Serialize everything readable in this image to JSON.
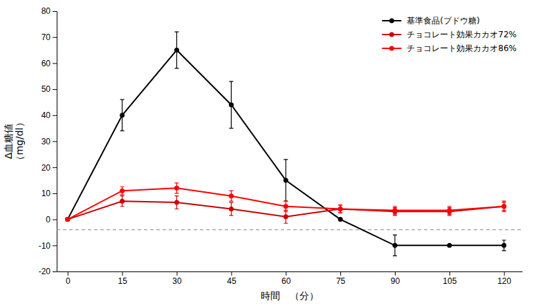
{
  "chart_data": {
    "type": "line",
    "x_label": "時間　（分）",
    "y_label": [
      "Δ血糖値",
      "（mg/dl）"
    ],
    "x": [
      0,
      15,
      30,
      45,
      60,
      75,
      90,
      105,
      120
    ],
    "series": [
      {
        "name": "基準食品(ブドウ糖)",
        "color": "#000000",
        "marker": "circle",
        "line_style": "solid",
        "values": [
          0,
          40,
          65,
          44,
          15,
          0,
          -10,
          -10,
          -10
        ],
        "errors": [
          0,
          6,
          7,
          9,
          8,
          0,
          4,
          0,
          2
        ]
      },
      {
        "name": "チョコレート効果カカオ72%",
        "color": "#cc0000",
        "marker": "circle",
        "line_style": "solid",
        "values": [
          0,
          7,
          6.5,
          4,
          1,
          4,
          3,
          3,
          5
        ],
        "errors": [
          0,
          2,
          2.5,
          2.5,
          2.5,
          1.5,
          1.5,
          1.5,
          2
        ]
      },
      {
        "name": "チョコレート効果カカオ86%",
        "color": "#ff0000",
        "marker": "circle",
        "line_style": "solid",
        "values": [
          0,
          11,
          12,
          9,
          5,
          4,
          3.5,
          3.5,
          5
        ],
        "errors": [
          0,
          1.5,
          2,
          2,
          2,
          1.5,
          1.5,
          1.5,
          1.5
        ]
      }
    ],
    "reference_y": -4,
    "xlim": [
      -3,
      125
    ],
    "ylim": [
      -20,
      80
    ],
    "xticks": [
      0,
      15,
      30,
      45,
      60,
      75,
      90,
      105,
      120
    ],
    "yticks": [
      -20,
      -10,
      0,
      10,
      20,
      30,
      40,
      50,
      60,
      70,
      80
    ],
    "grid": false,
    "legend": "upper right"
  }
}
